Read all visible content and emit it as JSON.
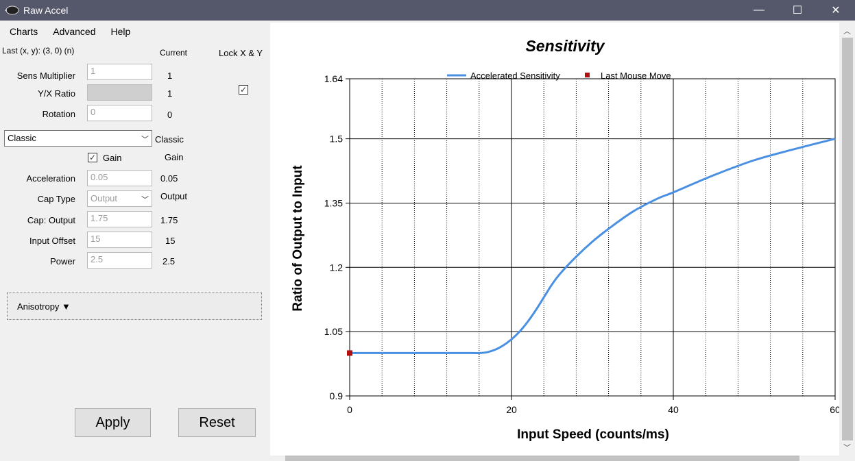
{
  "window": {
    "title": "Raw Accel",
    "minimize": "—",
    "maximize": "☐",
    "close": "✕"
  },
  "menu": [
    "Charts",
    "Advanced",
    "Help"
  ],
  "panel": {
    "last_move": "Last (x, y): (3, 0) (n)",
    "current_header": "Current",
    "lock_header": "Lock X & Y",
    "sens_label": "Sens Multiplier",
    "sens_value": "1",
    "sens_current": "1",
    "ratio_label": "Y/X Ratio",
    "ratio_current": "1",
    "lock_checked": "✓",
    "rotation_label": "Rotation",
    "rotation_value": "0",
    "rotation_current": "0",
    "mode_selected": "Classic",
    "mode_current": "Classic",
    "gain_checked": "✓",
    "gain_label": "Gain",
    "gain_current": "Gain",
    "accel_label": "Acceleration",
    "accel_value": "0.05",
    "accel_current": "0.05",
    "captype_label": "Cap Type",
    "captype_selected": "Output",
    "captype_current": "Output",
    "capout_label": "Cap: Output",
    "capout_value": "1.75",
    "capout_current": "1.75",
    "offset_label": "Input Offset",
    "offset_value": "15",
    "offset_current": "15",
    "power_label": "Power",
    "power_value": "2.5",
    "power_current": "2.5",
    "anisotropy_label": "Anisotropy ▼",
    "apply_label": "Apply",
    "reset_label": "Reset"
  },
  "chart_data": {
    "type": "line",
    "title": "Sensitivity",
    "xlabel": "Input Speed (counts/ms)",
    "ylabel": "Ratio of Output to Input",
    "xlim": [
      0,
      60
    ],
    "ylim": [
      0.9,
      1.64
    ],
    "xticks": [
      "0",
      "20",
      "40",
      "60"
    ],
    "yticks": [
      "0.9",
      "1.05",
      "1.2",
      "1.35",
      "1.5",
      "1.64"
    ],
    "legend": [
      "Accelerated Sensitivity",
      "Last Mouse Move"
    ],
    "colors": {
      "line": "#4a90e2",
      "marker": "#b01010"
    },
    "series": [
      {
        "name": "Accelerated Sensitivity",
        "x": [
          0,
          5,
          10,
          15,
          16,
          17,
          18,
          19,
          20,
          21,
          22,
          23,
          24,
          25,
          26,
          28,
          30,
          32,
          35,
          38,
          40,
          45,
          50,
          55,
          60
        ],
        "y": [
          1.0,
          1.0,
          1.0,
          1.0,
          1.0,
          1.002,
          1.008,
          1.018,
          1.032,
          1.05,
          1.073,
          1.1,
          1.13,
          1.16,
          1.185,
          1.225,
          1.26,
          1.29,
          1.33,
          1.36,
          1.375,
          1.415,
          1.45,
          1.476,
          1.5
        ]
      },
      {
        "name": "Last Mouse Move",
        "x": [
          0
        ],
        "y": [
          1.0
        ]
      }
    ]
  }
}
